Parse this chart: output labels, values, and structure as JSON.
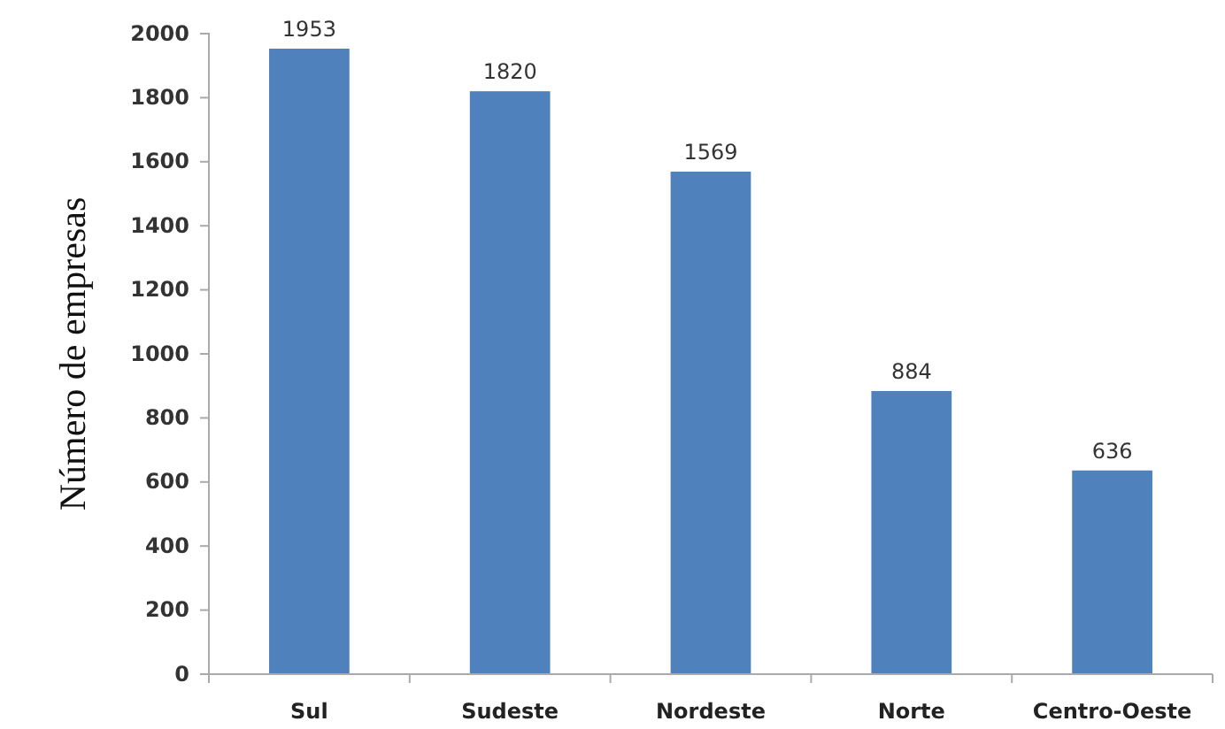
{
  "chart_data": {
    "type": "bar",
    "ylabel": "Número de empresas",
    "categories": [
      "Sul",
      "Sudeste",
      "Nordeste",
      "Norte",
      "Centro-Oeste"
    ],
    "values": [
      1953,
      1820,
      1569,
      884,
      636
    ],
    "color": "#4f81bd",
    "ylim": [
      0,
      2000
    ],
    "yticks": [
      0,
      200,
      400,
      600,
      800,
      1000,
      1200,
      1400,
      1600,
      1800,
      2000
    ],
    "data_labels": true,
    "grid": false
  }
}
